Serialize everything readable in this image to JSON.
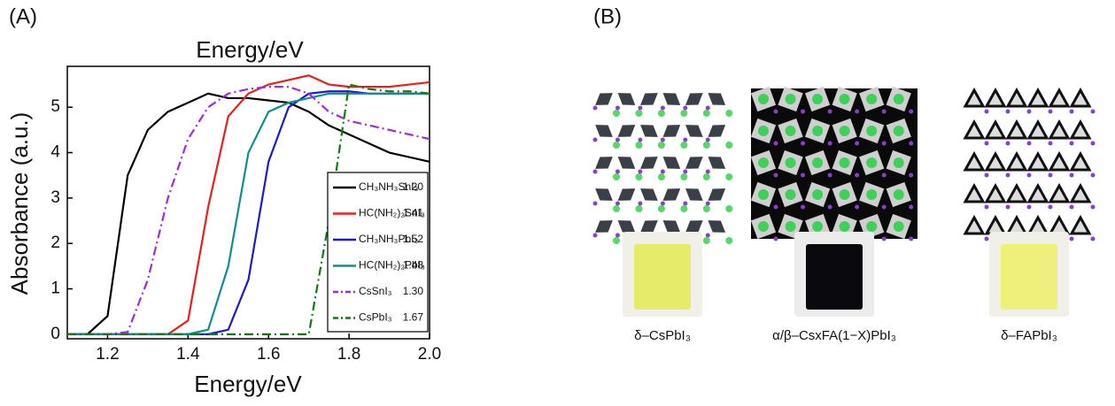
{
  "panel_label": "(A)",
  "chart_data": {
    "type": "line",
    "title": "Energy/eV",
    "xlabel": "Energy/eV",
    "ylabel": "Absorbance (a.u.)",
    "x": [
      1.1,
      1.15,
      1.2,
      1.25,
      1.3,
      1.35,
      1.4,
      1.45,
      1.5,
      1.55,
      1.6,
      1.65,
      1.7,
      1.75,
      1.8,
      1.85,
      1.9,
      1.95,
      2.0
    ],
    "xlim": [
      1.1,
      2.0
    ],
    "ylim": [
      -0.1,
      5.9
    ],
    "xticks": [
      1.2,
      1.4,
      1.6,
      1.8,
      {
        "value": 2,
        "label": "2.0"
      }
    ],
    "yticks": [
      0,
      1,
      2,
      3,
      4,
      5
    ],
    "series": [
      {
        "name": "CH₃NH₃SnI₃",
        "bandgap": "1.20",
        "color": "#000000",
        "linestyle": "solid",
        "values": [
          0,
          0,
          0.4,
          3.5,
          4.5,
          4.9,
          5.1,
          5.3,
          5.2,
          5.2,
          5.15,
          5.1,
          4.9,
          4.6,
          4.4,
          4.2,
          4.0,
          3.9,
          3.8
        ]
      },
      {
        "name": "HC(NH₂)₂SnI₃",
        "bandgap": "1.41",
        "color": "#e8201a",
        "linestyle": "solid",
        "values": [
          0,
          0,
          0,
          0,
          0,
          0,
          0.3,
          2.8,
          4.8,
          5.3,
          5.5,
          5.6,
          5.7,
          5.5,
          5.45,
          5.45,
          5.45,
          5.5,
          5.55
        ]
      },
      {
        "name": "CH₃NH₃PbI₃",
        "bandgap": "1.52",
        "color": "#1a1acf",
        "linestyle": "solid",
        "values": [
          0,
          0,
          0,
          0,
          0,
          0,
          0,
          0,
          0.1,
          1.2,
          3.8,
          5.0,
          5.3,
          5.35,
          5.35,
          5.3,
          5.3,
          5.3,
          5.3
        ]
      },
      {
        "name": "HC(NH₂)₂PbI₃",
        "bandgap": "1.48",
        "color": "#0f8f8a",
        "linestyle": "solid",
        "values": [
          0,
          0,
          0,
          0,
          0,
          0,
          0,
          0.1,
          1.5,
          4.0,
          4.9,
          5.1,
          5.2,
          5.3,
          5.3,
          5.3,
          5.3,
          5.3,
          5.3
        ]
      },
      {
        "name": "CsSnI₃",
        "bandgap": "1.30",
        "color": "#9a2ee0",
        "linestyle": "dashdot",
        "values": [
          0,
          0,
          0,
          0.05,
          1.2,
          3.0,
          4.3,
          5.0,
          5.3,
          5.4,
          5.45,
          5.45,
          5.3,
          4.9,
          4.7,
          4.6,
          4.5,
          4.4,
          4.3
        ]
      },
      {
        "name": "CsPbI₃",
        "bandgap": "1.67",
        "color": "#137a13",
        "linestyle": "dashdot",
        "values": [
          0,
          0,
          0,
          0,
          0,
          0,
          0,
          0,
          0,
          0,
          0,
          0,
          0,
          2.5,
          5.5,
          5.4,
          5.35,
          5.35,
          5.3
        ]
      }
    ]
  },
  "panel_b": {
    "label": "(B)",
    "samples": [
      {
        "label": "δ–CsPbI₃"
      },
      {
        "label": "α/β–CsxFA(1−X)PbI₃"
      },
      {
        "label": "δ–FAPbI₃"
      }
    ]
  }
}
